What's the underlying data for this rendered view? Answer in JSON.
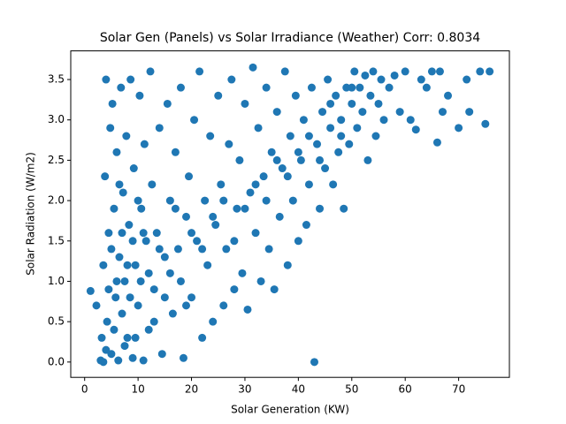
{
  "chart_data": {
    "type": "scatter",
    "title": "Solar Gen (Panels) vs Solar Irradiance (Weather) Corr: 0.8034",
    "x_label": "Solar Generation (KW)",
    "y_label": "Solar Radiation (W/m2)",
    "color": "#1f77b4",
    "grid": false,
    "xlim": [
      -2.6,
      79.5
    ],
    "ylim": [
      -0.19,
      3.855
    ],
    "xticks": [
      0,
      10,
      20,
      30,
      40,
      50,
      60,
      70
    ],
    "yticks": [
      {
        "value": 0,
        "label": "0.0"
      },
      0.5,
      {
        "value": 1,
        "label": "1.0"
      },
      1.5,
      {
        "value": 2,
        "label": "2.0"
      },
      2.5,
      {
        "value": 3,
        "label": "3.0"
      },
      3.5
    ],
    "x": [
      1.1,
      2.2,
      3,
      3.2,
      3.5,
      3.8,
      4,
      4.2,
      4.5,
      4.8,
      5,
      5.2,
      5.5,
      5.8,
      6,
      6.3,
      6.5,
      6.8,
      7,
      7.2,
      7.5,
      7.8,
      8,
      8.3,
      8.6,
      9,
      9.2,
      9.5,
      10,
      10.3,
      10.6,
      11,
      11.2,
      11.5,
      12,
      12.3,
      12.6,
      13,
      13.5,
      14,
      14.5,
      15,
      15.5,
      16,
      16.5,
      17,
      17.5,
      18,
      18.5,
      19,
      19.5,
      20,
      20.5,
      21,
      21.5,
      22,
      22.5,
      23,
      23.5,
      24,
      24.5,
      25,
      25.5,
      26,
      26.5,
      27,
      27.5,
      28,
      28.5,
      29,
      29.5,
      30,
      30.5,
      31,
      31.5,
      32,
      32.5,
      33,
      33.5,
      34,
      34.5,
      35,
      35.5,
      36,
      36.5,
      37,
      37.5,
      38,
      38.5,
      39,
      39.5,
      40,
      40.5,
      41,
      41.5,
      42,
      42.5,
      43,
      43.5,
      44,
      44.5,
      45,
      45.5,
      46,
      46.5,
      47,
      47.5,
      48,
      48.5,
      49,
      49.5,
      50,
      50.5,
      51,
      51.5,
      52,
      52.5,
      53,
      53.5,
      54,
      54.5,
      55,
      55.5,
      56,
      57,
      58,
      59,
      60,
      61,
      62,
      63,
      64,
      65,
      66,
      66.5,
      67,
      68,
      70,
      71.5,
      72,
      74,
      75,
      75.8,
      3.5,
      4,
      4.5,
      5,
      5.5,
      6,
      6.5,
      7,
      7.5,
      8,
      8.5,
      9,
      9.5,
      10,
      10.5,
      11,
      12,
      13,
      14,
      15,
      16,
      17,
      18,
      19,
      20,
      22,
      24,
      26,
      28,
      30,
      32,
      34,
      36,
      38,
      40,
      42,
      44,
      46,
      48,
      50
    ],
    "values": [
      0.88,
      0.7,
      0.02,
      0.3,
      1.2,
      2.3,
      3.5,
      0.5,
      1.6,
      2.9,
      0.1,
      3.2,
      1.9,
      0.8,
      2.6,
      0.02,
      1.3,
      3.4,
      0.6,
      2.1,
      1.0,
      2.8,
      0.3,
      1.7,
      3.5,
      0.05,
      2.4,
      1.2,
      0.7,
      3.3,
      1.9,
      0.02,
      2.7,
      1.5,
      0.4,
      3.6,
      2.2,
      0.9,
      1.6,
      2.9,
      0.1,
      1.3,
      3.2,
      2.0,
      0.6,
      2.6,
      1.4,
      3.4,
      0.05,
      1.8,
      2.3,
      0.8,
      3.0,
      1.5,
      3.6,
      0.3,
      2.0,
      1.2,
      2.8,
      0.5,
      1.7,
      3.3,
      2.2,
      0.7,
      1.4,
      2.7,
      3.5,
      0.9,
      1.9,
      2.5,
      1.1,
      3.2,
      0.65,
      2.1,
      3.65,
      1.6,
      2.9,
      1.0,
      2.3,
      3.4,
      1.4,
      2.6,
      0.9,
      3.1,
      1.8,
      2.4,
      3.6,
      1.2,
      2.8,
      2.0,
      3.3,
      1.5,
      2.5,
      3.0,
      1.7,
      2.2,
      3.4,
      0.0,
      2.7,
      1.9,
      3.1,
      2.4,
      3.5,
      2.9,
      2.2,
      3.3,
      2.6,
      3.0,
      1.9,
      3.4,
      2.7,
      3.2,
      3.6,
      2.9,
      3.4,
      3.1,
      3.55,
      2.5,
      3.3,
      3.6,
      2.8,
      3.2,
      3.5,
      3.0,
      3.4,
      3.55,
      3.1,
      3.6,
      3.0,
      2.88,
      3.5,
      3.4,
      3.6,
      2.72,
      3.6,
      3.1,
      3.3,
      2.9,
      3.5,
      3.1,
      3.6,
      2.95,
      3.6,
      0.0,
      0.15,
      0.9,
      1.4,
      0.4,
      1.0,
      2.2,
      1.6,
      0.2,
      1.2,
      0.8,
      1.5,
      0.3,
      2.0,
      1.0,
      1.6,
      1.1,
      0.5,
      1.4,
      0.8,
      1.1,
      1.9,
      1.0,
      0.7,
      1.6,
      1.4,
      1.8,
      2.0,
      1.5,
      1.9,
      2.2,
      2.0,
      2.5,
      2.3,
      2.6,
      2.8,
      2.5,
      3.2,
      2.8,
      3.4
    ]
  }
}
